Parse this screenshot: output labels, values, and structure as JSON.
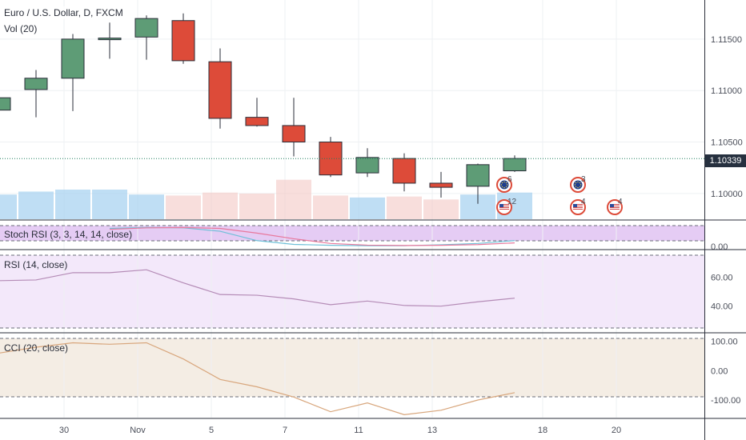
{
  "overlays": {
    "main_title": "Euro / U.S. Dollar, D, FXCM",
    "volume": "Vol (20)",
    "stoch": "Stoch RSI (3, 3, 14, 14, close)",
    "rsi": "RSI (14, close)",
    "cci": "CCI (20, close)"
  },
  "last_price": "1.10339",
  "colors": {
    "up": "#5e9c76",
    "down": "#dd4b39",
    "price_line": "#1e7e5e",
    "stoch_bg": "#e5ccf4",
    "rsi_bg": "#f3e8fa",
    "cci_bg": "#f4ede4",
    "rsi_line": "#b48bb6",
    "cci_line": "#d8a67c",
    "stoch_k": "#6fc0d8",
    "stoch_d": "#e8789c",
    "volume": "#a9d3f0"
  },
  "chart_data": [
    {
      "type": "candlestick",
      "title": "Euro / U.S. Dollar, D, FXCM",
      "x_ticks": [
        "30",
        "Nov",
        "5",
        "7",
        "11",
        "13",
        "18",
        "20"
      ],
      "y_ticks": [
        "1.11500",
        "1.11000",
        "1.10500",
        "1.10000"
      ],
      "ylim": [
        1.0975,
        1.1188
      ],
      "candles": [
        {
          "open": 1.1081,
          "high": 1.1093,
          "low": 1.1081,
          "close": 1.1093
        },
        {
          "open": 1.1101,
          "high": 1.112,
          "low": 1.1074,
          "close": 1.1112
        },
        {
          "open": 1.1112,
          "high": 1.1155,
          "low": 1.108,
          "close": 1.115
        },
        {
          "open": 1.115,
          "high": 1.1166,
          "low": 1.1131,
          "close": 1.1151
        },
        {
          "open": 1.1152,
          "high": 1.1173,
          "low": 1.113,
          "close": 1.117
        },
        {
          "open": 1.1168,
          "high": 1.1175,
          "low": 1.1126,
          "close": 1.1129
        },
        {
          "open": 1.1128,
          "high": 1.1141,
          "low": 1.1063,
          "close": 1.1073
        },
        {
          "open": 1.1074,
          "high": 1.1093,
          "low": 1.1065,
          "close": 1.1066
        },
        {
          "open": 1.1066,
          "high": 1.1093,
          "low": 1.1036,
          "close": 1.105
        },
        {
          "open": 1.105,
          "high": 1.1055,
          "low": 1.1016,
          "close": 1.1018
        },
        {
          "open": 1.102,
          "high": 1.1044,
          "low": 1.1016,
          "close": 1.1035
        },
        {
          "open": 1.1034,
          "high": 1.1039,
          "low": 1.1002,
          "close": 1.101
        },
        {
          "open": 1.101,
          "high": 1.1021,
          "low": 1.0996,
          "close": 1.1006
        },
        {
          "open": 1.1007,
          "high": 1.1029,
          "low": 1.099,
          "close": 1.1028
        },
        {
          "open": 1.1022,
          "high": 1.1037,
          "low": 1.1021,
          "close": 1.1034
        }
      ],
      "events": [
        {
          "count": "6",
          "flag": "eu"
        },
        {
          "count": "12",
          "flag": "us"
        },
        {
          "count": "3",
          "flag": "eu"
        },
        {
          "count": "4",
          "flag": "us"
        },
        {
          "count": "4",
          "flag": "us"
        }
      ]
    },
    {
      "type": "bar",
      "title": "Vol (20)",
      "values": [
        25,
        28,
        30,
        30,
        25,
        24,
        27,
        26,
        40,
        24,
        22,
        23,
        20,
        25,
        27
      ],
      "ylim": [
        0,
        60
      ]
    },
    {
      "type": "line",
      "title": "Stoch RSI (3, 3, 14, 14, close)",
      "y_ticks": [
        "0.00"
      ],
      "ylim": [
        -5,
        110
      ],
      "series": [
        {
          "values": [
            null,
            null,
            null,
            95,
            100,
            98,
            80,
            30,
            10,
            5,
            3,
            3,
            8,
            15,
            30
          ]
        },
        {
          "values": [
            null,
            null,
            null,
            90,
            98,
            100,
            95,
            70,
            40,
            15,
            6,
            4,
            5,
            9,
            18
          ]
        }
      ]
    },
    {
      "type": "line",
      "title": "RSI (14, close)",
      "y_ticks": [
        "60.00",
        "40.00"
      ],
      "ylim": [
        25,
        75
      ],
      "series": [
        {
          "values": [
            57.5,
            58,
            63,
            63,
            65,
            56,
            48,
            47.5,
            45,
            41,
            43.5,
            40.5,
            40,
            43,
            45.5
          ]
        }
      ]
    },
    {
      "type": "line",
      "title": "CCI (20, close)",
      "y_ticks": [
        "100.00",
        "0.00",
        "-100.00"
      ],
      "ylim": [
        -160,
        110
      ],
      "series": [
        {
          "values": [
            60,
            80,
            95,
            90,
            95,
            40,
            -30,
            -55,
            -90,
            -140,
            -110,
            -150,
            -135,
            -100,
            -75
          ]
        }
      ]
    }
  ]
}
